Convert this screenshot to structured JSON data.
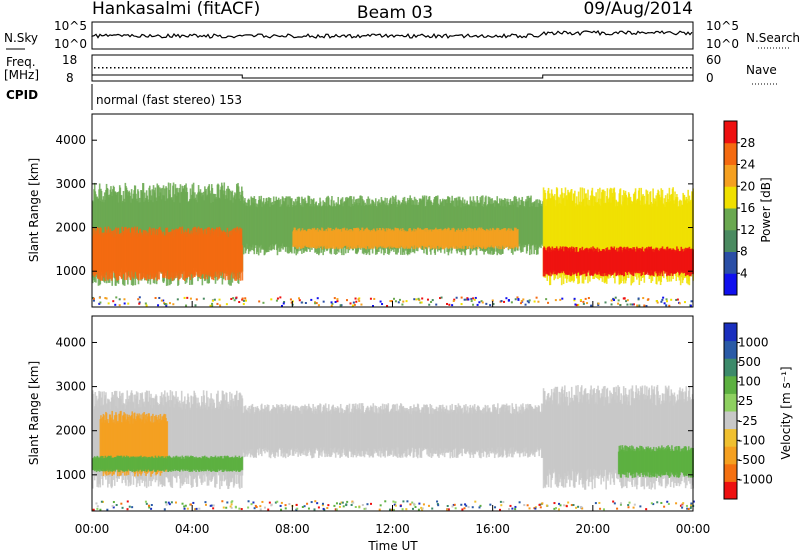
{
  "header": {
    "station": "Hankasalmi (fitACF)",
    "beam": "Beam 03",
    "date": "09/Aug/2014"
  },
  "noise_panel": {
    "left_label": "N.Sky",
    "right_label": "N.Search",
    "left_ticks": [
      "10^5",
      "10^0"
    ],
    "right_ticks": [
      "10^5",
      "10^0"
    ]
  },
  "freq_panel": {
    "left_label_1": "Freq.",
    "left_label_2": "[MHz]",
    "right_label": "Nave",
    "left_ticks": [
      "18",
      "8"
    ],
    "right_ticks": [
      "60",
      "0"
    ]
  },
  "cpid_panel": {
    "label": "CPID",
    "mode_text": "normal (fast stereo) 153"
  },
  "xaxis": {
    "label": "Time UT",
    "ticks": [
      "00:00",
      "04:00",
      "08:00",
      "12:00",
      "16:00",
      "20:00",
      "00:00"
    ]
  },
  "colors": {
    "power": [
      "#1010ee",
      "#2b4fa6",
      "#4a8a60",
      "#6aa850",
      "#f0e000",
      "#f5a020",
      "#f46a10",
      "#ee1010"
    ],
    "velocity": [
      "#ee1010",
      "#f47010",
      "#f5a020",
      "#f0c030",
      "#c8c8c8",
      "#8ed060",
      "#5cb040",
      "#3c8a6a",
      "#2a5aa6",
      "#1a2fbe"
    ]
  },
  "chart_data": [
    {
      "type": "heatmap",
      "name": "power",
      "xlabel": "Time UT",
      "ylabel": "Slant Range [km]",
      "xlim": [
        0,
        24
      ],
      "ylim": [
        180,
        4600
      ],
      "yticks": [
        1000,
        2000,
        3000,
        4000
      ],
      "colorbar": {
        "label": "Power [dB]",
        "range": [
          0,
          32
        ],
        "ticks": [
          "4",
          "8",
          "12",
          "16",
          "20",
          "24",
          "28"
        ]
      },
      "regions": [
        {
          "t": [
            0.0,
            6.0
          ],
          "r": [
            900,
            2800
          ],
          "level": 3
        },
        {
          "t": [
            0.0,
            6.0
          ],
          "r": [
            900,
            1900
          ],
          "level": 6
        },
        {
          "t": [
            6.0,
            18.0
          ],
          "r": [
            1500,
            2600
          ],
          "level": 3
        },
        {
          "t": [
            8.0,
            17.0
          ],
          "r": [
            1550,
            1950
          ],
          "level": 5
        },
        {
          "t": [
            18.0,
            24.0
          ],
          "r": [
            900,
            2700
          ],
          "level": 4
        },
        {
          "t": [
            18.0,
            24.0
          ],
          "r": [
            950,
            1500
          ],
          "level": 7
        }
      ]
    },
    {
      "type": "heatmap",
      "name": "velocity",
      "xlabel": "Time UT",
      "ylabel": "Slant Range [km]",
      "xlim": [
        0,
        24
      ],
      "ylim": [
        180,
        4600
      ],
      "yticks": [
        1000,
        2000,
        3000,
        4000
      ],
      "colorbar": {
        "label": "Velocity [m s⁻¹]",
        "range": [
          -1250,
          1250
        ],
        "ticks": [
          "1000",
          "500",
          "100",
          "25",
          "-25",
          "-100",
          "-500",
          "-1000"
        ]
      },
      "regions": [
        {
          "t": [
            0.0,
            6.0
          ],
          "r": [
            900,
            2700
          ],
          "level": 4
        },
        {
          "t": [
            0.3,
            3.0
          ],
          "r": [
            1100,
            2300
          ],
          "level": 2
        },
        {
          "t": [
            0.0,
            6.0
          ],
          "r": [
            1100,
            1400
          ],
          "level": 6
        },
        {
          "t": [
            6.0,
            18.0
          ],
          "r": [
            1500,
            2500
          ],
          "level": 4
        },
        {
          "t": [
            18.0,
            24.0
          ],
          "r": [
            900,
            2800
          ],
          "level": 4
        },
        {
          "t": [
            21.0,
            24.0
          ],
          "r": [
            1000,
            1600
          ],
          "level": 6
        }
      ]
    }
  ]
}
